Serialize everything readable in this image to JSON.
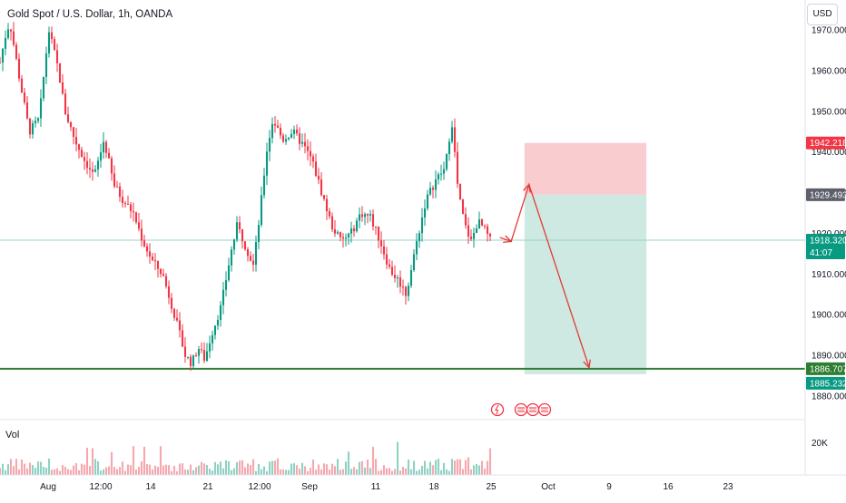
{
  "header": {
    "title": "Gold Spot / U.S. Dollar, 1h, OANDA",
    "currency_button": "USD",
    "volume_label": "Vol"
  },
  "chart_data": {
    "type": "candlestick",
    "title": "Gold Spot / U.S. Dollar, 1h, OANDA",
    "y_unit": "USD",
    "ylim": [
      1876,
      1973
    ],
    "y_ticks": [
      "1970.000",
      "1960.000",
      "1950.000",
      "1940.000",
      "1930.000",
      "1920.000",
      "1910.000",
      "1900.000",
      "1890.000",
      "1880.000"
    ],
    "y_tick_values": [
      1970,
      1960,
      1950,
      1940,
      1930,
      1920,
      1910,
      1900,
      1890,
      1880
    ],
    "x_ticks": [
      "Aug",
      "12:00",
      "14",
      "21",
      "12:00",
      "Sep",
      "11",
      "18",
      "25",
      "Oct",
      "9",
      "16",
      "23"
    ],
    "price_path": [
      [
        0,
        1962
      ],
      [
        0.3,
        1968
      ],
      [
        0.6,
        1972
      ],
      [
        1.2,
        1958
      ],
      [
        1.8,
        1945
      ],
      [
        2.4,
        1948
      ],
      [
        3.0,
        1970
      ],
      [
        3.6,
        1960
      ],
      [
        4.0,
        1950
      ],
      [
        4.6,
        1943
      ],
      [
        5.2,
        1938
      ],
      [
        5.8,
        1934
      ],
      [
        6.4,
        1943
      ],
      [
        7.0,
        1932
      ],
      [
        7.6,
        1928
      ],
      [
        8.2,
        1925
      ],
      [
        8.8,
        1918
      ],
      [
        9.4,
        1913
      ],
      [
        10.0,
        1910
      ],
      [
        10.6,
        1902
      ],
      [
        11.0,
        1896
      ],
      [
        11.4,
        1890
      ],
      [
        11.8,
        1888
      ],
      [
        12.2,
        1892
      ],
      [
        12.6,
        1889
      ],
      [
        13.0,
        1895
      ],
      [
        13.6,
        1902
      ],
      [
        14.2,
        1915
      ],
      [
        14.6,
        1922
      ],
      [
        15.2,
        1916
      ],
      [
        15.6,
        1912
      ],
      [
        16.0,
        1925
      ],
      [
        16.4,
        1940
      ],
      [
        16.8,
        1948
      ],
      [
        17.4,
        1943
      ],
      [
        18.0,
        1945
      ],
      [
        18.6,
        1942
      ],
      [
        19.2,
        1938
      ],
      [
        19.8,
        1930
      ],
      [
        20.4,
        1922
      ],
      [
        21.0,
        1918
      ],
      [
        21.6,
        1920
      ],
      [
        22.2,
        1925
      ],
      [
        22.8,
        1924
      ],
      [
        23.4,
        1918
      ],
      [
        24.0,
        1911
      ],
      [
        24.6,
        1908
      ],
      [
        25.0,
        1905
      ],
      [
        25.6,
        1917
      ],
      [
        26.2,
        1928
      ],
      [
        26.8,
        1933
      ],
      [
        27.4,
        1936
      ],
      [
        27.8,
        1948
      ],
      [
        28.2,
        1930
      ],
      [
        28.6,
        1922
      ],
      [
        29.0,
        1918
      ],
      [
        29.4,
        1923
      ],
      [
        29.8,
        1921
      ],
      [
        30.2,
        1918
      ]
    ],
    "projection": [
      [
        30.2,
        1919
      ],
      [
        30.9,
        1918
      ],
      [
        32.0,
        1932
      ],
      [
        35.7,
        1887
      ]
    ],
    "position": {
      "entry": 1929.493,
      "stop": 1942.218,
      "target": 1886.707,
      "x_start": 31.5,
      "x_end": 39.0
    },
    "horizontal_level": 1886.707,
    "horizontal_line": 1918.32,
    "price_labels": [
      {
        "text": "1942.218",
        "value": 1942.218,
        "color": "#f23645"
      },
      {
        "text": "1929.493",
        "value": 1929.493,
        "color": "#5d606b"
      },
      {
        "text": "1918.320",
        "value": 1918.32,
        "color": "#089981",
        "sub": "41:07"
      },
      {
        "text": "1886.707",
        "value": 1886.707,
        "color": "#2e7d32"
      },
      {
        "text": "1885.232",
        "value": 1885.232,
        "color": "#089981"
      }
    ],
    "volume_axis_label": "20K",
    "colors": {
      "up": "#089981",
      "down": "#f23645",
      "level": "#2e7d32",
      "stop_zone": "#f9cdd0",
      "target_zone": "#cde9e1",
      "arrow": "#e53935"
    }
  }
}
